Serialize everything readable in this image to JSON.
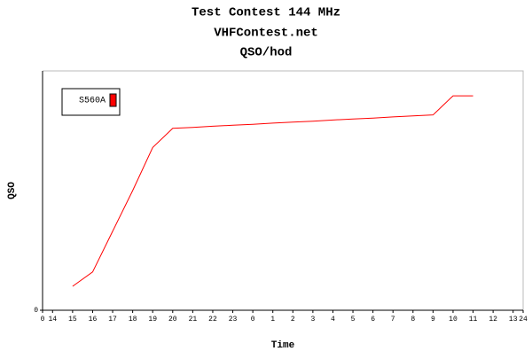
{
  "chart_data": {
    "type": "line",
    "title": "Test Contest 144 MHz",
    "subtitle": "VHFContest.net",
    "subtitle2": "QSO/hod",
    "xlabel": "Time",
    "ylabel": "QSO",
    "x": [
      1.5,
      2.5,
      3.5,
      4.5,
      5.5,
      6.5,
      7.5,
      8.5,
      9.5,
      10.5,
      11.5,
      12.5,
      13.5,
      14.5,
      15.5,
      16.5,
      17.5,
      18.5,
      19.5,
      20.5,
      21.5
    ],
    "series": [
      {
        "name": "S560A",
        "color": "#ff0000",
        "values": [
          10,
          16,
          33,
          50,
          68,
          76,
          76.4,
          76.9,
          77.3,
          77.7,
          78.2,
          78.6,
          79,
          79.5,
          79.9,
          80.3,
          80.8,
          81.2,
          81.6,
          89.6,
          89.6
        ]
      }
    ],
    "xlim": [
      0,
      24
    ],
    "xticks": [
      0,
      {
        "value": 0.5,
        "label": "14"
      },
      {
        "value": 1.5,
        "label": "15"
      },
      {
        "value": 2.5,
        "label": "16"
      },
      {
        "value": 3.5,
        "label": "17"
      },
      {
        "value": 4.5,
        "label": "18"
      },
      {
        "value": 5.5,
        "label": "19"
      },
      {
        "value": 6.5,
        "label": "20"
      },
      {
        "value": 7.5,
        "label": "21"
      },
      {
        "value": 8.5,
        "label": "22"
      },
      {
        "value": 9.5,
        "label": "23"
      },
      {
        "value": 10.5,
        "label": "0"
      },
      {
        "value": 11.5,
        "label": "1"
      },
      {
        "value": 12.5,
        "label": "2"
      },
      {
        "value": 13.5,
        "label": "3"
      },
      {
        "value": 14.5,
        "label": "4"
      },
      {
        "value": 15.5,
        "label": "5"
      },
      {
        "value": 16.5,
        "label": "6"
      },
      {
        "value": 17.5,
        "label": "7"
      },
      {
        "value": 18.5,
        "label": "8"
      },
      {
        "value": 19.5,
        "label": "9"
      },
      {
        "value": 20.5,
        "label": "10"
      },
      {
        "value": 21.5,
        "label": "11"
      },
      {
        "value": 22.5,
        "label": "12"
      },
      {
        "value": 23.5,
        "label": "13"
      },
      24
    ],
    "ylim": [
      0,
      100
    ],
    "yticks": [
      0
    ]
  }
}
